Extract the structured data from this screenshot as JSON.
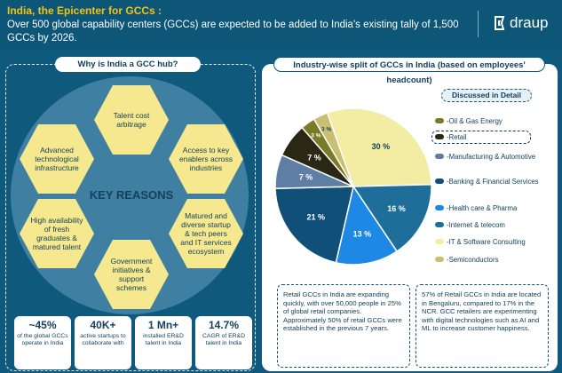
{
  "header": {
    "title": "India, the Epicenter for GCCs :",
    "subtitle": "Over 500 global capability centers (GCCs) are expected to be added to India's existing tally of 1,500 GCCs by 2026.",
    "logo_text": "draup",
    "accent_color": "#f4c40f"
  },
  "left": {
    "heading": "Why is India a GCC hub?",
    "center_label": "KEY REASONS",
    "reasons": [
      "Talent cost arbitrage",
      "Access to key enablers across industries",
      "Matured and diverse startup & tech peers and IT services ecosystem",
      "Government initiatives & support schemes",
      "High availability of fresh graduates & matured talent",
      "Advanced technological infrastructure"
    ],
    "stats": [
      {
        "value": "~45%",
        "label": "of the global GCCs operate in India"
      },
      {
        "value": "40K+",
        "label": "active startups to collaborate with"
      },
      {
        "value": "1 Mn+",
        "label": "installed ER&D talent in India"
      },
      {
        "value": "14.7%",
        "label": "CAGR of ER&D talent in India"
      }
    ]
  },
  "right": {
    "heading": "Industry-wise split of GCCs in India (based on employees' headcount)",
    "discussed_label": "Discussed in Detail",
    "notes": [
      "Retail GCCs in India are expanding quickly, with over 50,000 people in 25% of global retail companies. Approximately 50% of retail GCCs were established in the previous 7 years.",
      "57% of Retail GCCs in India are located in Bengaluru, compared to 17% in the NCR. GCC retailers are experimenting with digital technologies such as AI and ML to increase customer happiness."
    ]
  },
  "chart_data": {
    "type": "pie",
    "title": "Industry-wise split of GCCs in India (based on employees' headcount)",
    "categories": [
      "-IT & Software Consulting",
      "-Internet & telecom",
      "-Health care & Pharma",
      "-Banking & Financial Services",
      "-Manufacturing & Automotive",
      "-Retail",
      "-Oil & Gas Energy",
      "-Semiconductors"
    ],
    "values": [
      30,
      16,
      13,
      21,
      7,
      7,
      3,
      3
    ],
    "labels": [
      "30 %",
      "16 %",
      "13 %",
      "21 %",
      "7 %",
      "7 %",
      "3 %",
      "3 %"
    ],
    "colors": [
      "#f3eca3",
      "#1f6e9a",
      "#1e88e5",
      "#0f4f78",
      "#5f7ea6",
      "#2a2713",
      "#7a7a28",
      "#c9bf73"
    ],
    "legend": [
      {
        "label": "-Oil & Gas Energy",
        "color": "#7a7a28"
      },
      {
        "label": "-Retail",
        "color": "#2a2713",
        "highlight": true
      },
      {
        "label": "-Manufacturing & Automotive",
        "color": "#5f7ea6"
      },
      {
        "label": "-Banking & Financial Services",
        "color": "#0f4f78"
      },
      {
        "label": "-Health care & Pharma",
        "color": "#1e88e5"
      },
      {
        "label": "-Internet & telecom",
        "color": "#1f6e9a"
      },
      {
        "label": "-IT & Software Consulting",
        "color": "#f3eca3"
      },
      {
        "label": "-Semiconductors",
        "color": "#c9bf73"
      }
    ],
    "legend_position": "right"
  }
}
